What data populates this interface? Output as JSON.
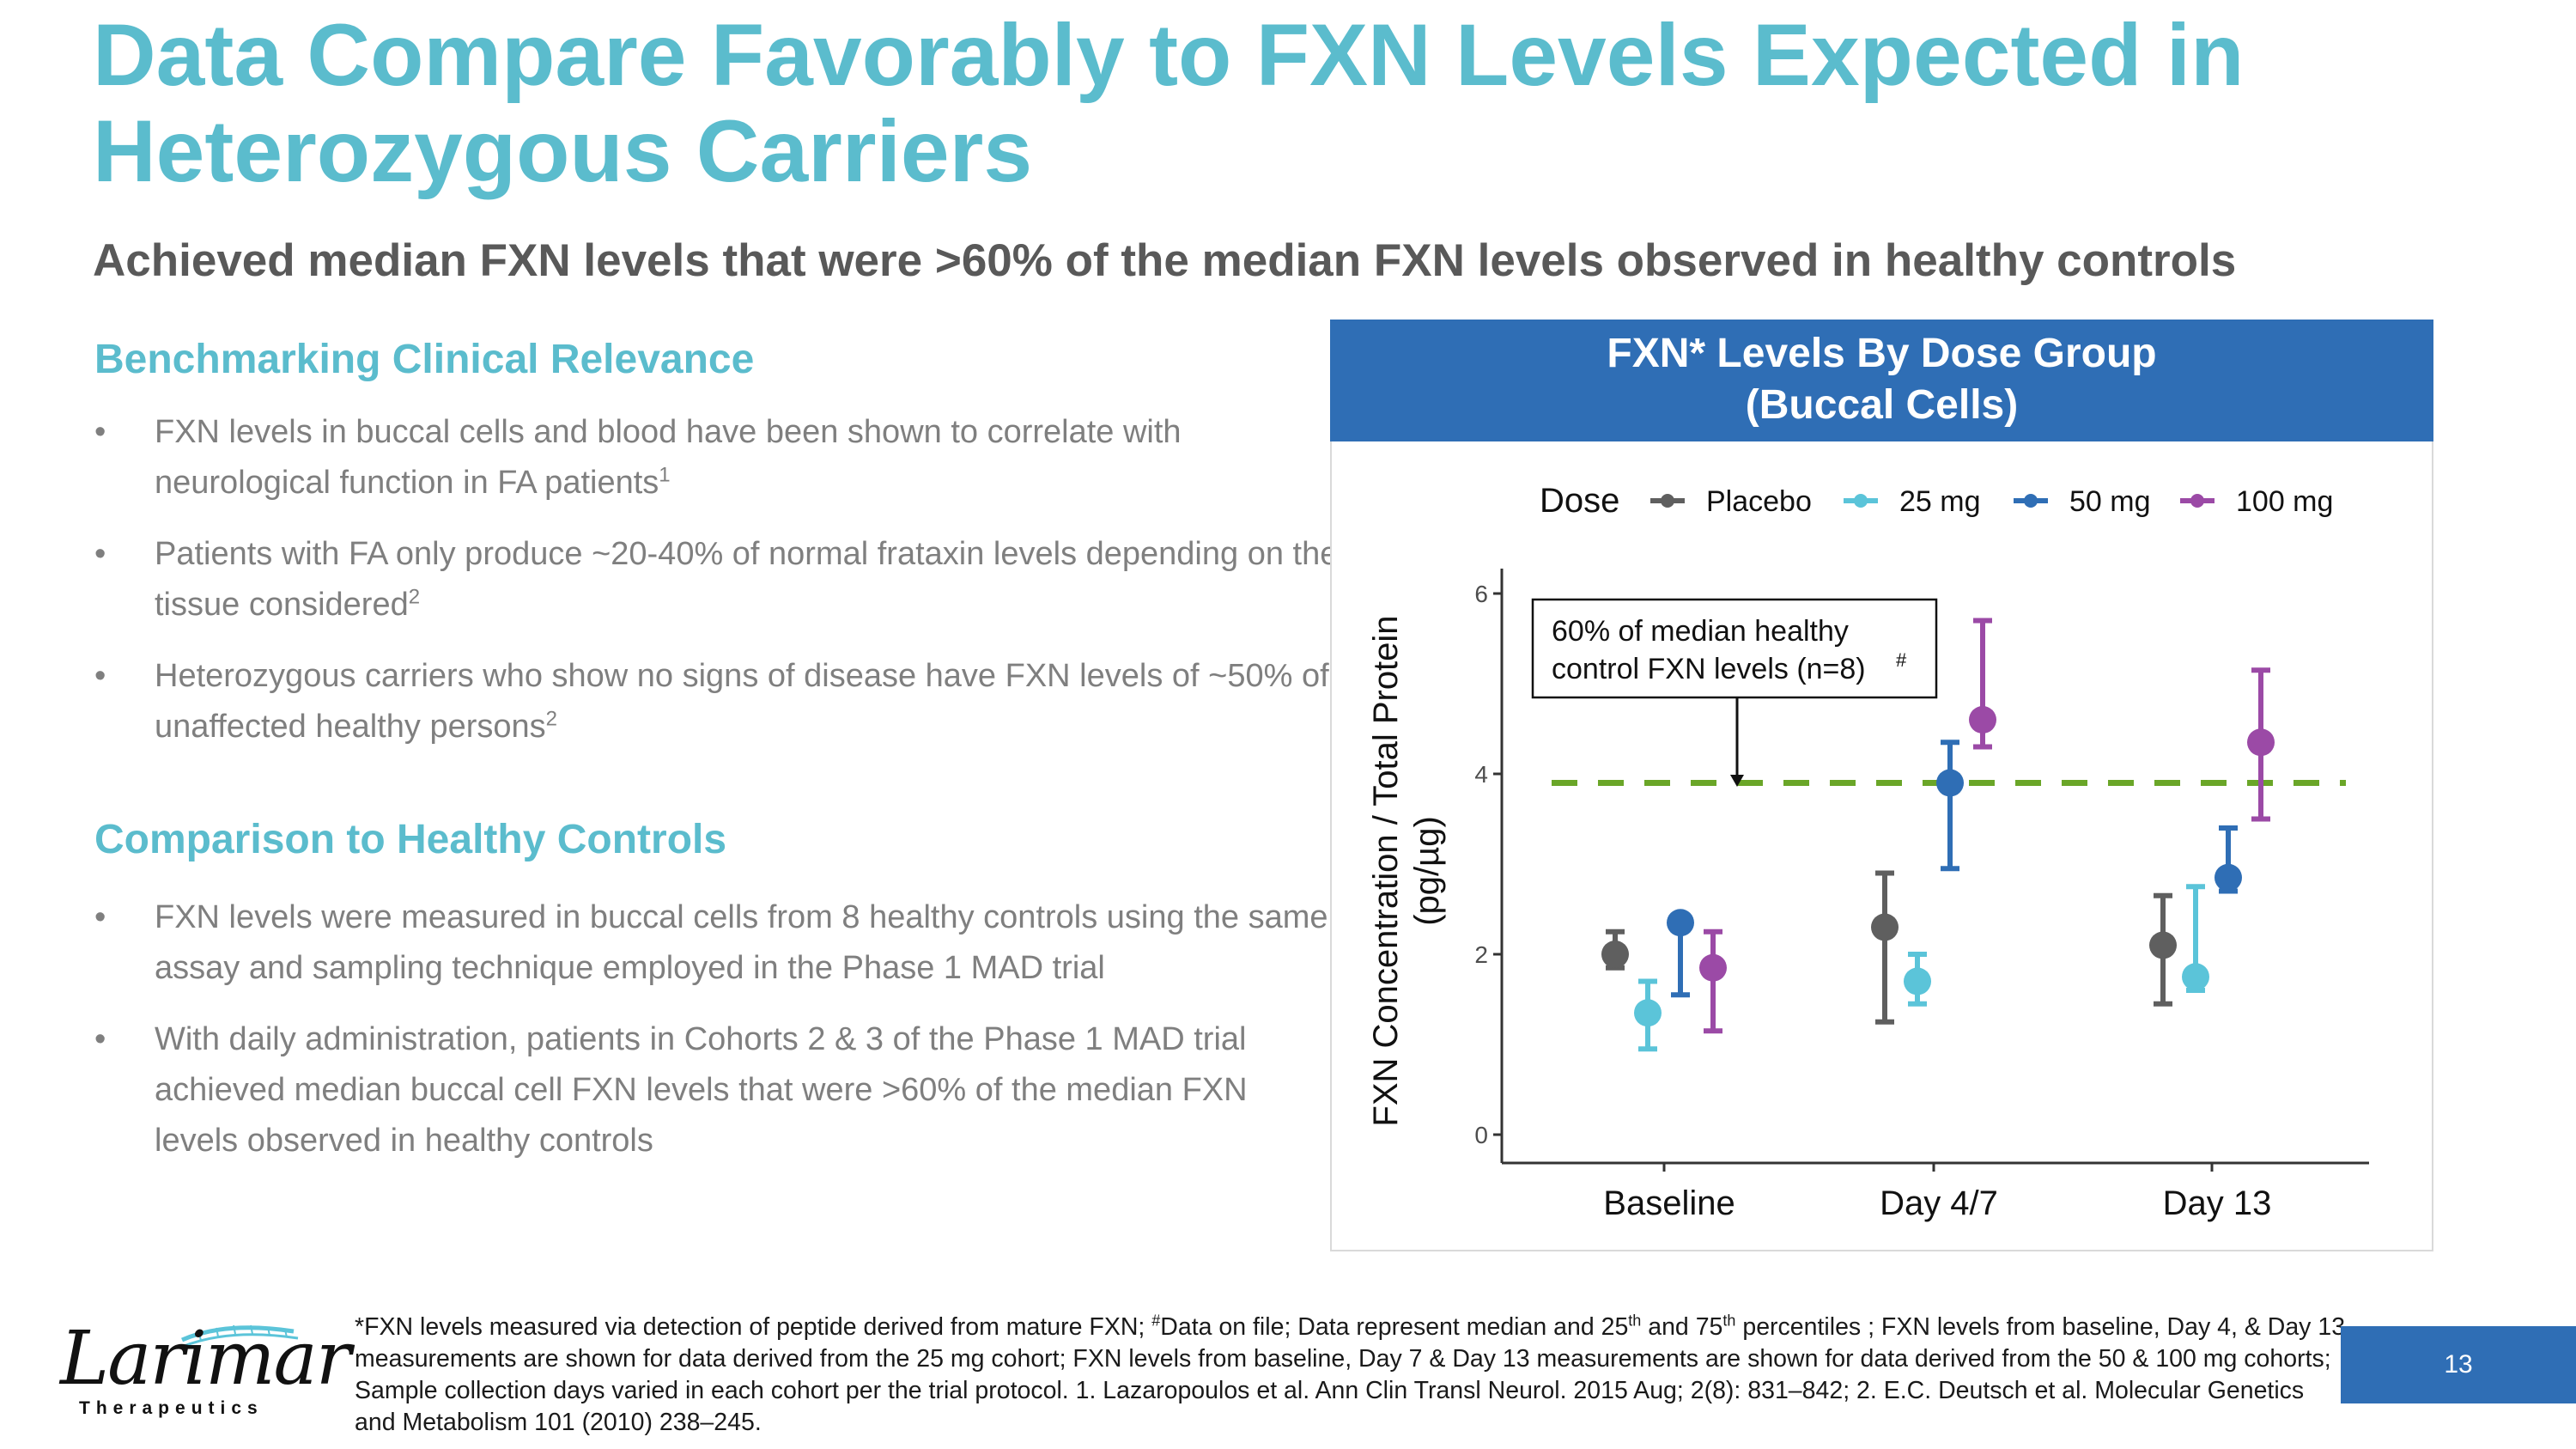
{
  "slide": {
    "title_line1": "Data Compare Favorably to FXN Levels Expected in",
    "title_line2": "Heterozygous Carriers",
    "subtitle": "Achieved median FXN levels that were >60% of the median FXN levels observed in healthy controls",
    "page_number": "13"
  },
  "sections": [
    {
      "heading": "Benchmarking Clinical Relevance",
      "bullets": [
        {
          "text": "FXN levels in buccal cells and blood have been shown to correlate with neurological function in FA patients",
          "sup": "1"
        },
        {
          "text": "Patients with FA only produce ~20-40% of normal frataxin levels depending on the tissue considered",
          "sup": "2"
        },
        {
          "text": "Heterozygous carriers who show no signs of disease have FXN levels of ~50% of unaffected healthy persons",
          "sup": "2"
        }
      ]
    },
    {
      "heading": "Comparison to Healthy Controls",
      "bullets": [
        {
          "text": "FXN levels were measured in buccal cells from 8 healthy controls using the same assay and sampling technique employed in the Phase 1 MAD trial",
          "sup": ""
        },
        {
          "text": "With daily administration, patients in Cohorts 2 & 3 of the Phase 1 MAD trial achieved median buccal cell FXN levels that were >60% of the median FXN levels observed in healthy controls",
          "sup": ""
        }
      ]
    }
  ],
  "bullet_glyph": "•",
  "chart_title_line1": "FXN* Levels By Dose Group",
  "chart_title_line2": "(Buccal Cells)",
  "chart_data": {
    "type": "scatter",
    "xlabel": "",
    "ylabel_line1": "FXN Concentration / Total Protein",
    "ylabel_line2": "(pg/µg)",
    "ylim": [
      0,
      6
    ],
    "yticks": [
      0,
      2,
      4,
      6
    ],
    "categories": [
      "Baseline",
      "Day 4/7",
      "Day 13"
    ],
    "legend_title": "Dose",
    "legend_position": "top",
    "grid": false,
    "series": [
      {
        "name": "Placebo",
        "color": "#5f5f5f",
        "median": [
          2.0,
          2.3,
          2.1
        ],
        "p25": [
          1.85,
          1.25,
          1.45
        ],
        "p75": [
          2.25,
          2.9,
          2.65
        ]
      },
      {
        "name": "25 mg",
        "color": "#5bc4d9",
        "median": [
          1.35,
          1.7,
          1.75
        ],
        "p25": [
          0.95,
          1.45,
          1.6
        ],
        "p75": [
          1.7,
          2.0,
          2.75
        ]
      },
      {
        "name": "50 mg",
        "color": "#2f6eb5",
        "median": [
          2.35,
          3.9,
          2.85
        ],
        "p25": [
          1.55,
          2.95,
          2.7
        ],
        "p75": [
          2.35,
          4.35,
          3.4
        ]
      },
      {
        "name": "100 mg",
        "color": "#9b4aa6",
        "median": [
          1.85,
          4.6,
          4.35
        ],
        "p25": [
          1.15,
          4.3,
          3.5
        ],
        "p75": [
          2.25,
          5.7,
          5.15
        ]
      }
    ],
    "reference_line": {
      "value": 3.9,
      "color": "#6aa628"
    },
    "annotation_line1": "60% of median healthy",
    "annotation_line2": "control FXN levels (n=8)",
    "annotation_sup": "#"
  },
  "footnote": {
    "part1": "*FXN levels measured via detection of peptide derived from mature FXN; ",
    "sup_hash": "#",
    "part2": "Data on file; Data represent median and 25",
    "sup_th1": "th",
    "part3": " and 75",
    "sup_th2": "th",
    "part4": " percentiles ; FXN levels from baseline, Day 4, & Day 13 measurements are shown for data derived from the 25 mg cohort; FXN levels from baseline, Day 7 & Day 13 measurements are shown for data derived from the 50 & 100 mg cohorts; Sample collection days varied in each cohort per the trial protocol. 1. Lazaropoulos et al. Ann Clin Transl Neurol. 2015 Aug; 2(8): 831–842; 2. E.C. Deutsch et al. Molecular Genetics and Metabolism 101 (2010) 238–245."
  },
  "logo": {
    "word": "Larimar",
    "sub": "Therapeutics",
    "accent_color": "#5bc4d9"
  }
}
